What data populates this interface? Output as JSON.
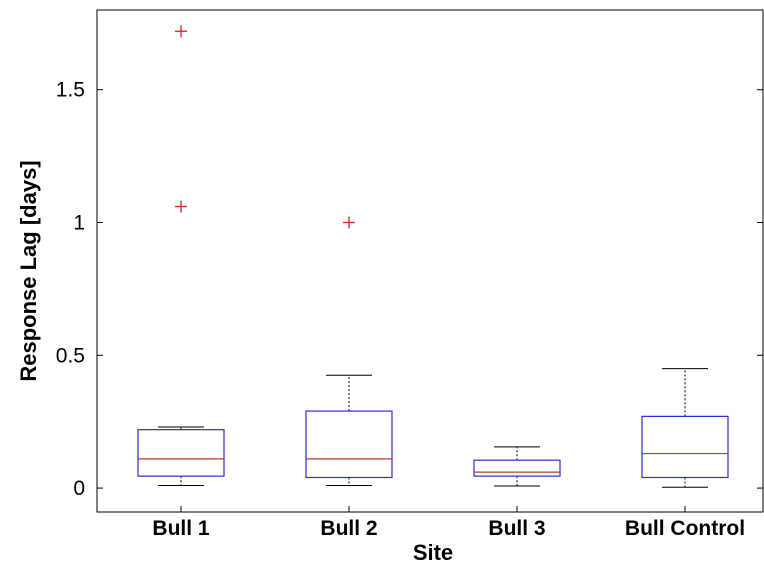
{
  "chart_data": {
    "type": "boxplot",
    "title": "",
    "xlabel": "Site",
    "ylabel": "Response Lag [days]",
    "ylim": [
      -0.09,
      1.8
    ],
    "yticks": [
      0,
      0.5,
      1,
      1.5
    ],
    "ytick_labels": [
      "0",
      "0.5",
      "1",
      "1.5"
    ],
    "categories": [
      "Bull 1",
      "Bull 2",
      "Bull 3",
      "Bull Control"
    ],
    "boxes": [
      {
        "category": "Bull 1",
        "whisker_low": 0.01,
        "q1": 0.045,
        "median": 0.11,
        "q3": 0.22,
        "whisker_high": 0.23,
        "outliers": [
          1.06,
          1.72
        ]
      },
      {
        "category": "Bull 2",
        "whisker_low": 0.01,
        "q1": 0.04,
        "median": 0.11,
        "q3": 0.29,
        "whisker_high": 0.425,
        "outliers": [
          1.0
        ]
      },
      {
        "category": "Bull 3",
        "whisker_low": 0.008,
        "q1": 0.045,
        "median": 0.06,
        "q3": 0.105,
        "whisker_high": 0.155,
        "outliers": []
      },
      {
        "category": "Bull Control",
        "whisker_low": 0.003,
        "q1": 0.04,
        "median": 0.13,
        "q3": 0.27,
        "whisker_high": 0.45,
        "outliers": []
      }
    ],
    "colors": {
      "box": "#2b2bd6",
      "median": "#c0392b",
      "whisker": "#000000",
      "outlier": "#d62020",
      "axis": "#000000"
    },
    "grid": false,
    "legend": "none"
  }
}
